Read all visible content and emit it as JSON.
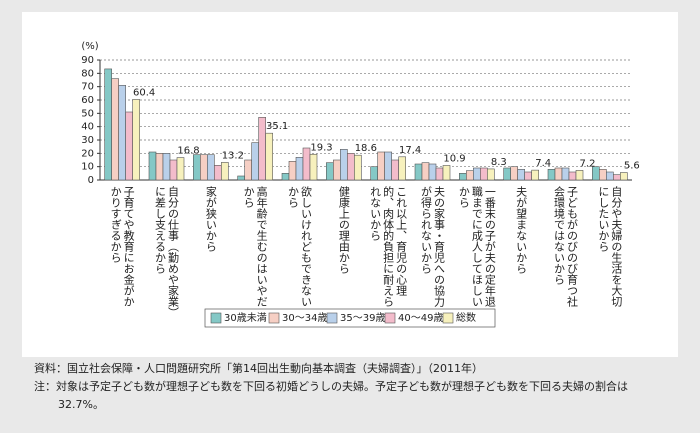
{
  "chart_data": {
    "type": "bar",
    "y_label": "(%)",
    "categories": [
      "子育てや教育にお金がかかりすぎるから",
      "自分の仕事（勤めや家業）に差し支えるから",
      "家が狭いから",
      "高年齢で生むのはいやだから",
      "欲しいけれどもできないから",
      "健康上の理由から",
      "これ以上、育児の心理的、肉体的負担に耐えられないから",
      "夫の家事・育児への協力が得られないから",
      "一番末の子が夫の定年退職までに成人してほしいから",
      "夫が望まないから",
      "子どもがのびのび育つ社会環境ではないから",
      "自分や夫婦の生活を大切にしたいから"
    ],
    "series": [
      {
        "name": "30歳未満",
        "color": "#84c8c6",
        "values": [
          83.3,
          21,
          19,
          3,
          5,
          13,
          10,
          12,
          5,
          9,
          8,
          10
        ]
      },
      {
        "name": "30～34歳",
        "color": "#f6cfc4",
        "values": [
          76,
          20,
          19,
          15,
          14,
          15,
          21,
          13,
          7,
          10,
          9,
          8
        ]
      },
      {
        "name": "35～39歳",
        "color": "#b9d0ea",
        "values": [
          71,
          20,
          19,
          28,
          17,
          23,
          21,
          12,
          9,
          8,
          9,
          6
        ]
      },
      {
        "name": "40～49歳",
        "color": "#f3bccb",
        "values": [
          51,
          15,
          11,
          47,
          24,
          20,
          15,
          9,
          9,
          6,
          6,
          4
        ]
      },
      {
        "name": "総数",
        "color": "#f7f1bd",
        "values": [
          60.4,
          16.8,
          13.2,
          35.1,
          19.3,
          18.6,
          17.4,
          10.9,
          8.3,
          7.4,
          7.2,
          5.6
        ]
      }
    ],
    "labeled_series": 4,
    "ylim": [
      0,
      90
    ],
    "yticks": [
      0,
      10,
      20,
      30,
      40,
      50,
      60,
      70,
      80,
      90
    ],
    "grid": true
  },
  "source": "資料：国立社会保障・人口問題研究所「第14回出生動向基本調査（夫婦調査）」（2011年）",
  "note": "注：対象は予定子ども数が理想子ども数を下回る初婚どうしの夫婦。予定子ども数が理想子ども数を下回る夫婦の割合は32.7%。"
}
